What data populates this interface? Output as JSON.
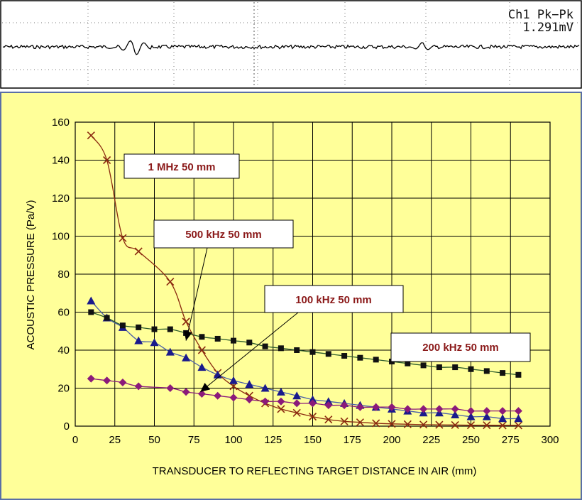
{
  "scope": {
    "readout_line1": "Ch1 Pk−Pk",
    "readout_line2": "1.291mV"
  },
  "chart_data": {
    "type": "line",
    "title": "",
    "xlabel": "TRANSDUCER TO REFLECTING TARGET DISTANCE IN AIR (mm)",
    "ylabel": "ACOUSTIC PRESSURE (Pa/V)",
    "xlim": [
      0,
      300
    ],
    "ylim": [
      0,
      160
    ],
    "x_ticks": [
      0,
      25,
      50,
      75,
      100,
      125,
      150,
      175,
      200,
      225,
      250,
      275,
      300
    ],
    "y_ticks": [
      0,
      20,
      40,
      60,
      80,
      100,
      120,
      140,
      160
    ],
    "grid": true,
    "background": "#FFFF99",
    "annotations": [
      {
        "label": "1 MHz 50 mm"
      },
      {
        "label": "500 kHz 50 mm"
      },
      {
        "label": "100 kHz 50 mm"
      },
      {
        "label": "200 kHz 50 mm"
      }
    ],
    "series": [
      {
        "name": "1 MHz 50 mm",
        "marker": "x",
        "color": "#8B2A10",
        "x": [
          10,
          20,
          30,
          40,
          60,
          70,
          80,
          90,
          100,
          110,
          120,
          130,
          140,
          150,
          160,
          170,
          180,
          190,
          200,
          210,
          220,
          230,
          240,
          250,
          260,
          270,
          280
        ],
        "y": [
          153,
          140,
          99,
          92,
          76,
          55,
          40,
          28,
          21,
          16,
          12,
          9,
          7,
          5,
          3.5,
          2.5,
          2,
          1.5,
          1.2,
          1,
          0.8,
          0.7,
          0.6,
          0.5,
          0.5,
          0.4,
          0.4
        ]
      },
      {
        "name": "500 kHz 50 mm",
        "marker": "triangle",
        "color": "#1A1A8C",
        "x": [
          10,
          20,
          30,
          40,
          50,
          60,
          70,
          80,
          90,
          100,
          110,
          120,
          130,
          140,
          150,
          160,
          170,
          180,
          190,
          200,
          210,
          220,
          230,
          240,
          250,
          260,
          270,
          280
        ],
        "y": [
          66,
          57,
          52,
          45,
          44,
          39,
          36,
          31,
          27,
          24,
          22,
          20,
          18,
          16,
          14,
          13,
          12,
          11,
          10,
          9,
          8,
          7,
          7,
          6,
          5,
          5,
          4,
          4
        ]
      },
      {
        "name": "200 kHz 50 mm",
        "marker": "square",
        "color": "#111111",
        "x": [
          10,
          20,
          30,
          40,
          50,
          60,
          70,
          80,
          90,
          100,
          110,
          120,
          130,
          140,
          150,
          160,
          170,
          180,
          190,
          200,
          210,
          220,
          230,
          240,
          250,
          260,
          270,
          280
        ],
        "y": [
          60,
          57,
          53,
          52,
          51,
          51,
          49,
          47,
          46,
          45,
          44,
          42,
          41,
          40,
          39,
          38,
          37,
          36,
          35,
          34,
          33,
          32,
          31,
          31,
          30,
          29,
          28,
          27
        ]
      },
      {
        "name": "100 kHz 50 mm",
        "marker": "diamond",
        "color": "#8B1A7A",
        "x": [
          10,
          20,
          30,
          40,
          60,
          70,
          80,
          90,
          100,
          110,
          120,
          130,
          140,
          150,
          160,
          170,
          180,
          190,
          200,
          210,
          220,
          230,
          240,
          250,
          260,
          270,
          280
        ],
        "y": [
          25,
          24,
          23,
          21,
          20,
          18,
          17,
          16,
          15,
          14,
          13,
          13,
          12,
          12,
          11,
          11,
          10,
          10,
          10,
          9,
          9,
          9,
          9,
          8,
          8,
          8,
          8
        ]
      }
    ]
  }
}
